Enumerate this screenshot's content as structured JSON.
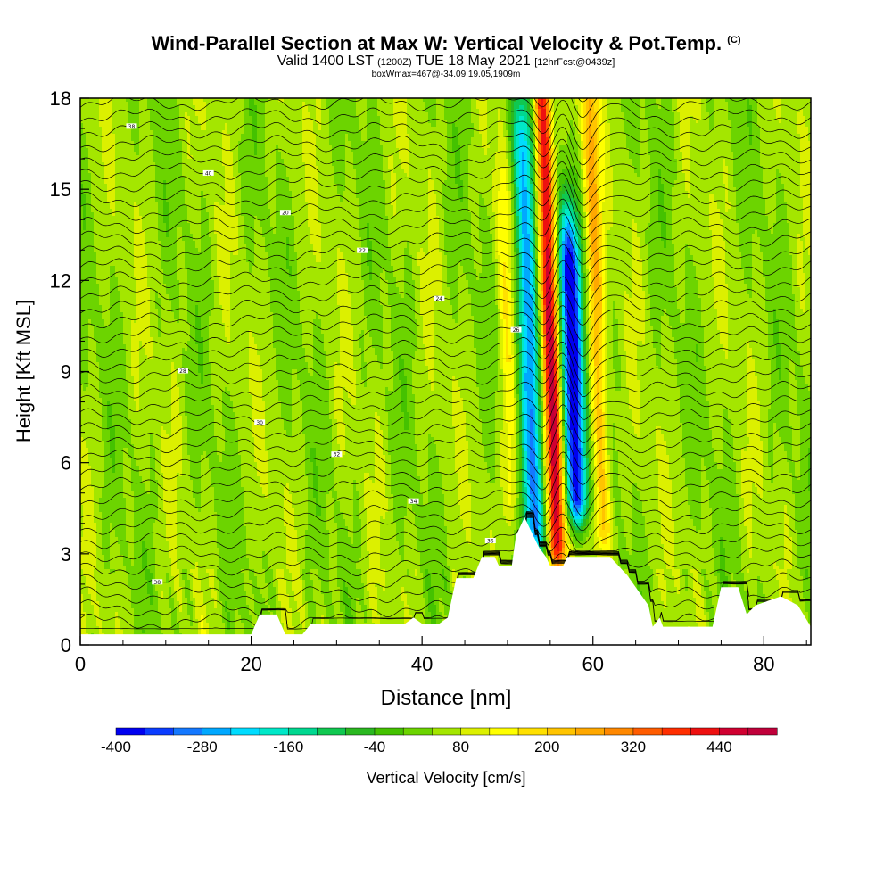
{
  "header": {
    "title": "Wind-Parallel Section at Max W: Vertical Velocity & Pot.Temp.",
    "title_mark": "(C)",
    "subtitle_pre": "Valid 1400 LST",
    "subtitle_utc": "(1200Z)",
    "subtitle_date": "TUE 18 May 2021",
    "subtitle_fcst": "[12hrFcst@0439z]",
    "box_info": "boxWmax=467@-34.09,19.05,1909m"
  },
  "chart_data": {
    "type": "heatmap",
    "xlabel": "Distance [nm]",
    "ylabel": "Height [Kft MSL]",
    "xlim": [
      0,
      85.5
    ],
    "ylim": [
      0,
      18
    ],
    "x_ticks": [
      0,
      20,
      40,
      60,
      80
    ],
    "y_ticks": [
      0,
      3,
      6,
      9,
      12,
      15,
      18
    ],
    "colorbar": {
      "label": "Vertical Velocity [cm/s]",
      "range": [
        -400,
        500
      ],
      "step": 40,
      "tick_values": [
        -400,
        -280,
        -160,
        -40,
        80,
        200,
        320,
        440
      ],
      "colors": [
        "#0000f0",
        "#0a3cff",
        "#1478ff",
        "#00a8ff",
        "#00dcff",
        "#00e8c8",
        "#00d890",
        "#10c850",
        "#2ab820",
        "#44c200",
        "#6cd400",
        "#a4e600",
        "#dcf000",
        "#ffff00",
        "#ffe000",
        "#ffc400",
        "#ffa800",
        "#ff8800",
        "#ff5c00",
        "#ff2e00",
        "#ee1010",
        "#d00030",
        "#c0003a"
      ]
    },
    "vertical_velocity_features": [
      {
        "name": "updraft",
        "x": 55.5,
        "y_range": [
          3.5,
          18
        ],
        "value": 467
      },
      {
        "name": "downdraft",
        "x": 58,
        "y_range": [
          5,
          12
        ],
        "value": -400
      },
      {
        "name": "updraft",
        "x": 61,
        "y_range": [
          4,
          18
        ],
        "value": 240
      },
      {
        "name": "downdraft",
        "x": 53,
        "y_range": [
          4,
          16
        ],
        "value": -280
      },
      {
        "name": "updraft",
        "x": 50.5,
        "y_range": [
          5,
          14
        ],
        "value": 160
      }
    ],
    "terrain_heights": [
      [
        0,
        0.35
      ],
      [
        20,
        0.35
      ],
      [
        21,
        1.0
      ],
      [
        23,
        1.0
      ],
      [
        24,
        0.35
      ],
      [
        26,
        0.35
      ],
      [
        27,
        0.7
      ],
      [
        38,
        0.7
      ],
      [
        39,
        0.9
      ],
      [
        40,
        0.7
      ],
      [
        42,
        0.7
      ],
      [
        43,
        0.9
      ],
      [
        44,
        2.2
      ],
      [
        46,
        2.2
      ],
      [
        47,
        2.9
      ],
      [
        48.5,
        2.9
      ],
      [
        49,
        2.6
      ],
      [
        50.5,
        2.6
      ],
      [
        51,
        3.6
      ],
      [
        52,
        4.2
      ],
      [
        53,
        3.6
      ],
      [
        53.7,
        3.2
      ],
      [
        54.5,
        2.9
      ],
      [
        55,
        2.6
      ],
      [
        56.5,
        2.6
      ],
      [
        57,
        2.9
      ],
      [
        62,
        2.9
      ],
      [
        63,
        2.6
      ],
      [
        64,
        2.3
      ],
      [
        65,
        1.9
      ],
      [
        66.5,
        1.3
      ],
      [
        67,
        0.6
      ],
      [
        67.8,
        0.9
      ],
      [
        68.2,
        0.6
      ],
      [
        74,
        0.6
      ],
      [
        75,
        1.9
      ],
      [
        77,
        1.9
      ],
      [
        78,
        1.0
      ],
      [
        79,
        1.3
      ],
      [
        82,
        1.6
      ],
      [
        84,
        1.3
      ],
      [
        85.5,
        0.6
      ]
    ],
    "theta_contour_labels": [
      "40",
      "38",
      "36",
      "34",
      "32",
      "30",
      "28",
      "26",
      "24",
      "22",
      "20"
    ]
  }
}
